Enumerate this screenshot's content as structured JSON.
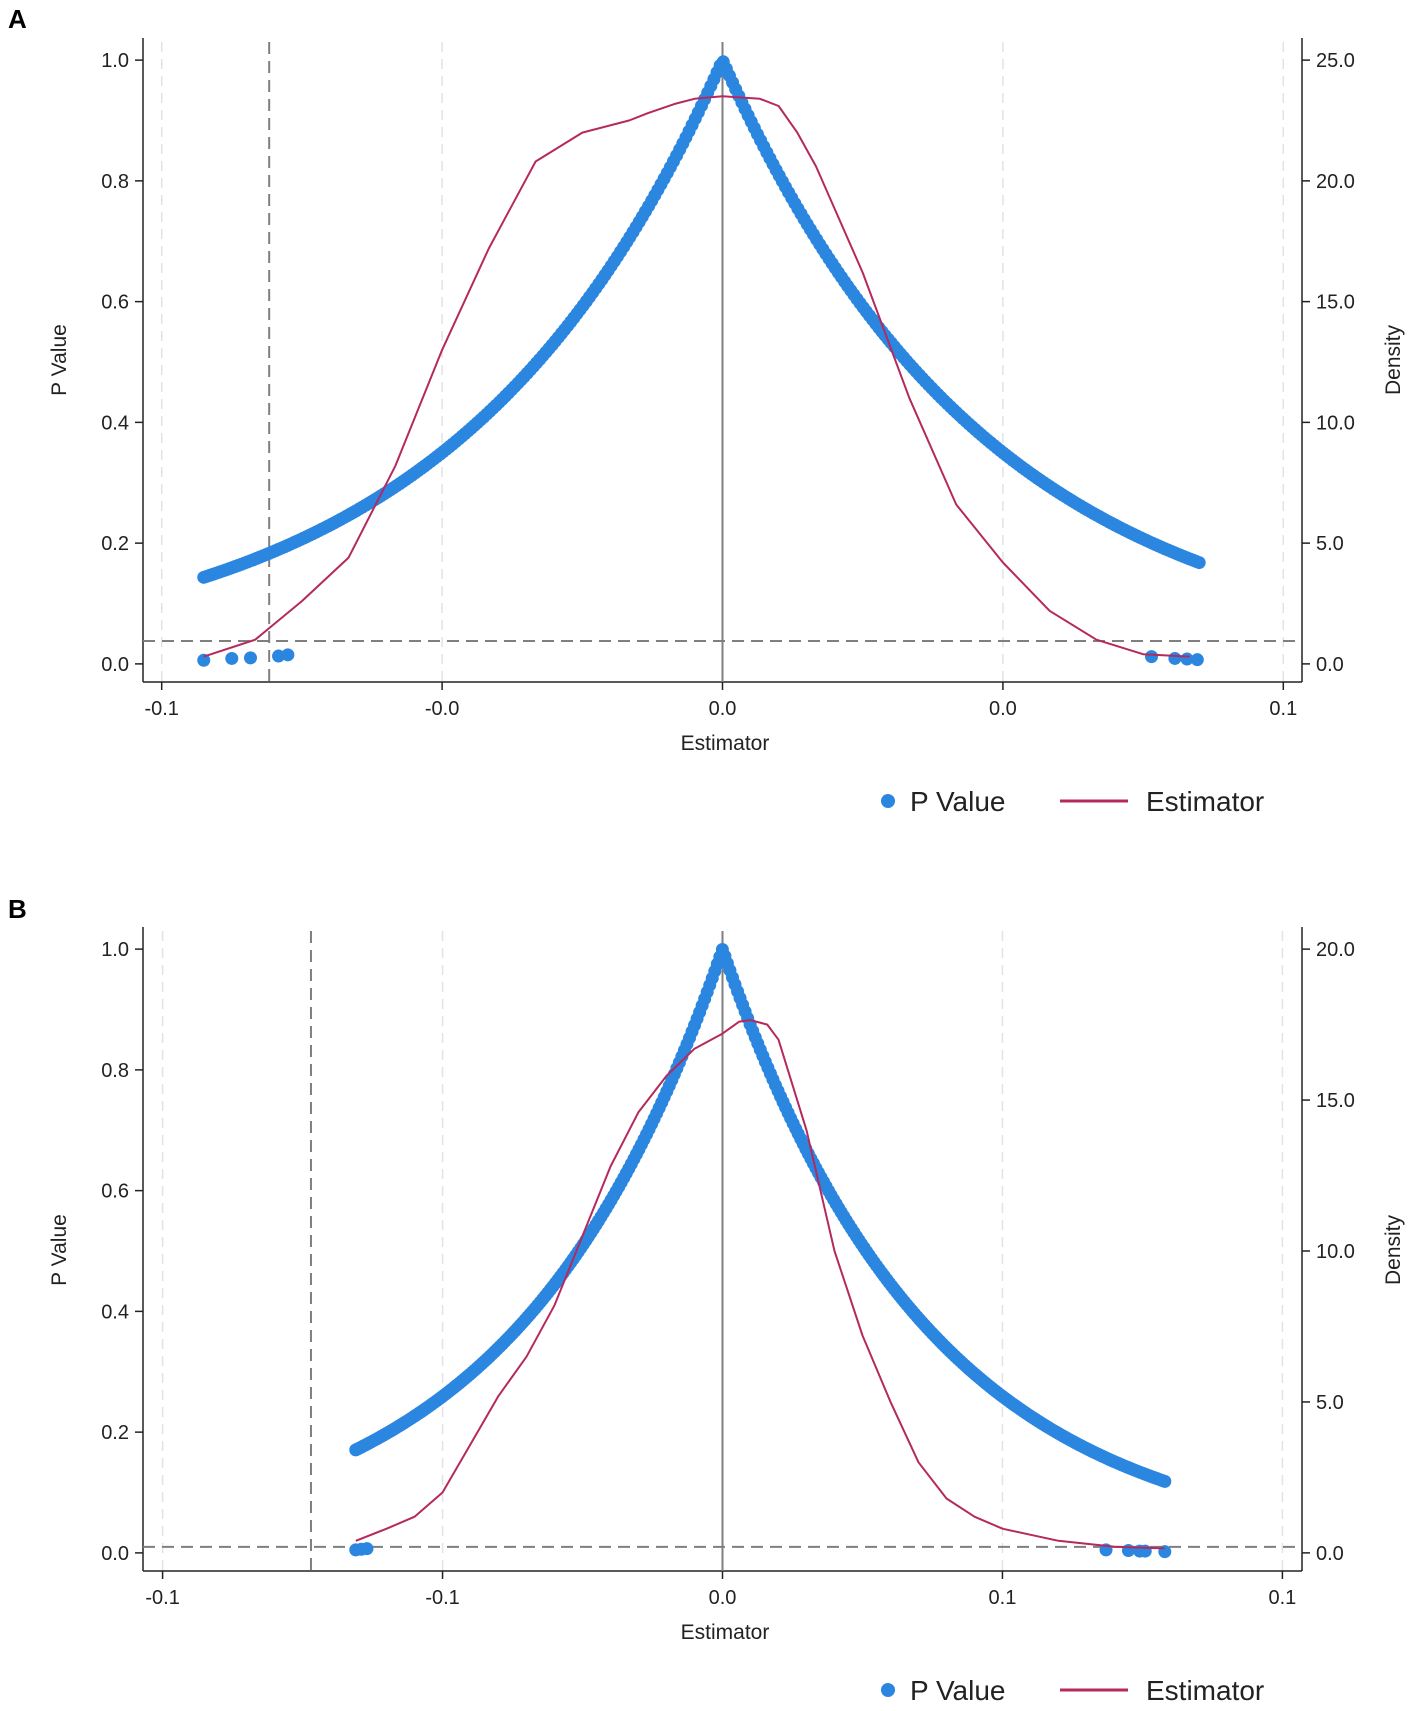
{
  "colors": {
    "pvalue": "#2b86e0",
    "density": "#b5295e",
    "axis": "#222222",
    "ref": "#7f7f7f",
    "grid": "#e3e3e3"
  },
  "chart_data": [
    {
      "panel": "A",
      "type": "scatter",
      "xlabel": "Estimator",
      "ylabel_left": "P Value",
      "ylabel_right": "Density",
      "x_ticks": [
        -0.06,
        -0.03,
        0.0,
        0.03,
        0.06
      ],
      "x_tick_labels": [
        "-0.1",
        "-0.0",
        "0.0",
        "0.0",
        "0.1"
      ],
      "xlim": [
        -0.062,
        0.062
      ],
      "left_ticks": [
        0.0,
        0.2,
        0.4,
        0.6,
        0.8,
        1.0
      ],
      "left_tick_labels": [
        "0.0",
        "0.2",
        "0.4",
        "0.6",
        "0.8",
        "1.0"
      ],
      "ylim_left": [
        -0.03,
        1.03
      ],
      "right_ticks": [
        0,
        5,
        10,
        15,
        20,
        25
      ],
      "right_tick_labels": [
        "0.0",
        "5.0",
        "10.0",
        "15.0",
        "20.0",
        "25.0"
      ],
      "ylim_right": [
        -0.75,
        25.75
      ],
      "gridlines_x": [
        -0.06,
        -0.03,
        0.03,
        0.06
      ],
      "ref_vertical_solid": 0.0,
      "ref_vertical_dashed": -0.0485,
      "ref_horizontal_dashed": 0.038,
      "pvalue_series": {
        "name": "P Value",
        "x_min": -0.0555,
        "x_max": 0.051,
        "decay": 35.0,
        "sparse_tail_points": [
          [
            -0.0555,
            0.006
          ],
          [
            -0.0525,
            0.009
          ],
          [
            -0.0505,
            0.01
          ],
          [
            -0.0475,
            0.013
          ],
          [
            -0.0465,
            0.015
          ],
          [
            0.0459,
            0.012
          ],
          [
            0.0484,
            0.009
          ],
          [
            0.0497,
            0.008
          ],
          [
            0.0508,
            0.007
          ]
        ]
      },
      "density_series": {
        "name": "Estimator",
        "x": [
          -0.0555,
          -0.05,
          -0.045,
          -0.04,
          -0.035,
          -0.03,
          -0.025,
          -0.02,
          -0.015,
          -0.01,
          -0.008,
          -0.005,
          -0.003,
          0.0,
          0.002,
          0.004,
          0.006,
          0.008,
          0.01,
          0.015,
          0.02,
          0.025,
          0.03,
          0.035,
          0.04,
          0.045,
          0.05
        ],
        "y": [
          0.3,
          1.0,
          2.6,
          4.4,
          8.2,
          13.0,
          17.2,
          20.8,
          22.0,
          22.5,
          22.8,
          23.2,
          23.4,
          23.5,
          23.45,
          23.4,
          23.1,
          22.0,
          20.6,
          16.2,
          11.0,
          6.6,
          4.2,
          2.2,
          1.0,
          0.4,
          0.3
        ]
      },
      "legend": [
        "P Value",
        "Estimator"
      ]
    },
    {
      "panel": "B",
      "type": "scatter",
      "xlabel": "Estimator",
      "ylabel_left": "P Value",
      "ylabel_right": "Density",
      "x_ticks": [
        -0.1,
        -0.05,
        0.0,
        0.05,
        0.1
      ],
      "x_tick_labels": [
        "-0.1",
        "-0.1",
        "0.0",
        "0.1",
        "0.1"
      ],
      "xlim": [
        -0.1035,
        0.1035
      ],
      "left_ticks": [
        0.0,
        0.2,
        0.4,
        0.6,
        0.8,
        1.0
      ],
      "left_tick_labels": [
        "0.0",
        "0.2",
        "0.4",
        "0.6",
        "0.8",
        "1.0"
      ],
      "ylim_left": [
        -0.03,
        1.03
      ],
      "right_ticks": [
        0,
        5,
        10,
        15,
        20
      ],
      "right_tick_labels": [
        "0.0",
        "5.0",
        "10.0",
        "15.0",
        "20.0"
      ],
      "ylim_right": [
        -0.6,
        20.6
      ],
      "gridlines_x": [
        -0.1,
        -0.05,
        0.05,
        0.1
      ],
      "ref_vertical_solid": 0.0,
      "ref_vertical_dashed": -0.0735,
      "ref_horizontal_dashed": 0.01,
      "pvalue_series": {
        "name": "P Value",
        "x_min": -0.0655,
        "x_max": 0.079,
        "decay": 27.0,
        "sparse_tail_points": [
          [
            -0.0655,
            0.005
          ],
          [
            -0.0645,
            0.006
          ],
          [
            -0.0635,
            0.007
          ],
          [
            0.0685,
            0.005
          ],
          [
            0.0725,
            0.004
          ],
          [
            0.0745,
            0.003
          ],
          [
            0.0755,
            0.003
          ],
          [
            0.079,
            0.002
          ]
        ]
      },
      "density_series": {
        "name": "Estimator",
        "x": [
          -0.0655,
          -0.06,
          -0.055,
          -0.05,
          -0.045,
          -0.04,
          -0.035,
          -0.03,
          -0.025,
          -0.02,
          -0.015,
          -0.01,
          -0.005,
          0.0,
          0.003,
          0.005,
          0.008,
          0.01,
          0.015,
          0.02,
          0.025,
          0.03,
          0.035,
          0.04,
          0.045,
          0.05,
          0.06,
          0.07,
          0.079
        ],
        "y": [
          0.4,
          0.8,
          1.2,
          2.0,
          3.6,
          5.2,
          6.5,
          8.2,
          10.5,
          12.8,
          14.6,
          15.8,
          16.7,
          17.2,
          17.6,
          17.65,
          17.5,
          17.0,
          14.0,
          10.0,
          7.2,
          5.0,
          3.0,
          1.8,
          1.2,
          0.8,
          0.4,
          0.2,
          0.15
        ]
      },
      "legend": [
        "P Value",
        "Estimator"
      ]
    }
  ]
}
